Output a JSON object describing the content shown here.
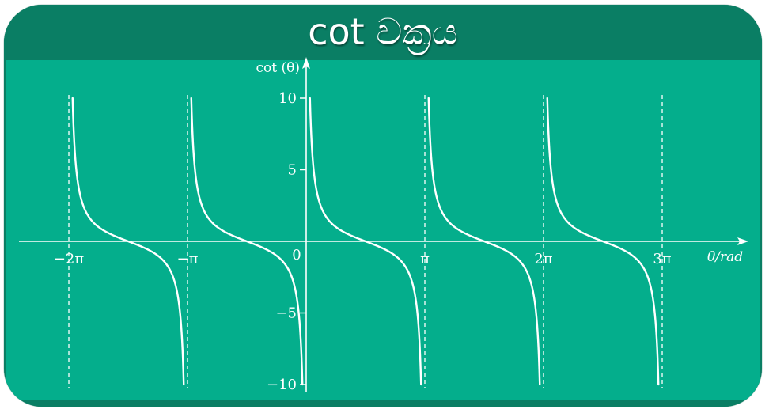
{
  "title": "cot වක්‍රය",
  "colors": {
    "banner": "#0a7e64",
    "panel": "#04ae8c",
    "curve": "#ffffff"
  },
  "chart_data": {
    "type": "line",
    "function": "cot",
    "xlabel": "θ/rad",
    "ylabel": "cot (θ)",
    "xlim": [
      -7.0,
      9.9
    ],
    "ylim": [
      -10,
      10
    ],
    "x_ticks": [
      {
        "value": -6.283,
        "label": "−2π"
      },
      {
        "value": -3.1416,
        "label": "−π"
      },
      {
        "value": 3.1416,
        "label": "π"
      },
      {
        "value": 6.283,
        "label": "2π"
      },
      {
        "value": 9.425,
        "label": "3π"
      }
    ],
    "origin_label": "0",
    "y_ticks": [
      {
        "value": 10,
        "label": "10"
      },
      {
        "value": 5,
        "label": "5"
      },
      {
        "value": -5,
        "label": "−5"
      },
      {
        "value": -10,
        "label": "−10"
      }
    ],
    "asymptotes": [
      -6.283,
      -3.1416,
      0,
      3.1416,
      6.283,
      9.425
    ],
    "asymptote_style": "dashed",
    "grid": false
  }
}
